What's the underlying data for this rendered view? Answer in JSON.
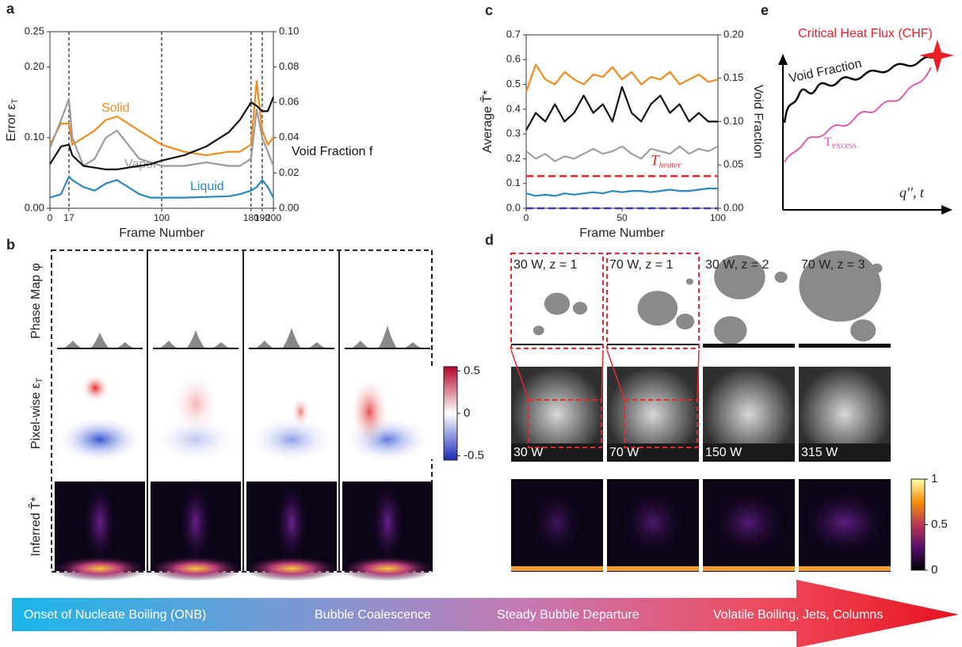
{
  "figure": {
    "panel_letters": [
      "a",
      "b",
      "c",
      "d",
      "e"
    ]
  },
  "chart_data": [
    {
      "type": "line",
      "xlabel": "Frame Number",
      "ylabel": "Error ε",
      "ylabel_sub": "T",
      "x": [
        0,
        10,
        17,
        20,
        30,
        40,
        50,
        60,
        70,
        80,
        90,
        100,
        120,
        140,
        160,
        170,
        180,
        185,
        190,
        195,
        200
      ],
      "xlim": [
        0,
        200
      ],
      "xticks": [
        0,
        17,
        100,
        180,
        190,
        200
      ],
      "ylim": [
        0,
        0.25
      ],
      "yticks": [
        {
          "value": 0,
          "label": "0.00"
        },
        {
          "value": 0.1,
          "label": "0.10"
        },
        {
          "value": 0.2,
          "label": "0.20"
        },
        0.25
      ],
      "y2lim": [
        0,
        0.1
      ],
      "y2ticks": [
        {
          "value": 0,
          "label": "0.00"
        },
        0.02,
        0.04,
        0.06,
        0.08,
        {
          "value": 0.1,
          "label": "0.10"
        }
      ],
      "vlines": [
        17,
        100,
        180,
        190
      ],
      "series": [
        {
          "name": "Solid",
          "color": "#f28a1c",
          "values": [
            0.09,
            0.12,
            0.12,
            0.09,
            0.1,
            0.11,
            0.125,
            0.13,
            0.12,
            0.11,
            0.1,
            0.09,
            0.08,
            0.075,
            0.08,
            0.08,
            0.09,
            0.18,
            0.11,
            0.09,
            0.1
          ]
        },
        {
          "name": "Vapor",
          "color": "#9a9a9a",
          "values": [
            0.085,
            0.125,
            0.155,
            0.1,
            0.06,
            0.07,
            0.1,
            0.11,
            0.09,
            0.07,
            0.065,
            0.06,
            0.06,
            0.065,
            0.06,
            0.06,
            0.07,
            0.14,
            0.1,
            0.08,
            0.06
          ]
        },
        {
          "name": "Liquid",
          "color": "#2a88c0",
          "values": [
            0.015,
            0.02,
            0.045,
            0.04,
            0.03,
            0.025,
            0.035,
            0.04,
            0.03,
            0.02,
            0.015,
            0.015,
            0.015,
            0.016,
            0.017,
            0.02,
            0.025,
            0.03,
            0.04,
            0.03,
            0.015
          ]
        },
        {
          "name": "Void Fraction f",
          "color": "#111111",
          "axis": "y2",
          "values": [
            0.025,
            0.035,
            0.036,
            0.03,
            0.024,
            0.023,
            0.022,
            0.022,
            0.023,
            0.024,
            0.025,
            0.027,
            0.03,
            0.035,
            0.043,
            0.05,
            0.06,
            0.058,
            0.055,
            0.055,
            0.063
          ]
        }
      ]
    },
    {
      "type": "line",
      "xlabel": "Frame Number",
      "ylabel": "Average T̂*",
      "y2label": "Void Fraction",
      "x": [
        0,
        5,
        10,
        15,
        20,
        25,
        30,
        35,
        40,
        45,
        50,
        55,
        60,
        65,
        70,
        75,
        80,
        85,
        90,
        95,
        100
      ],
      "xlim": [
        0,
        100
      ],
      "xticks": [
        0,
        50,
        100
      ],
      "ylim": [
        0,
        0.7
      ],
      "yticks": [
        {
          "value": 0,
          "label": "0.0"
        },
        0.1,
        0.2,
        0.3,
        0.4,
        0.5,
        0.6,
        0.7
      ],
      "y2lim": [
        0,
        0.2
      ],
      "y2ticks": [
        {
          "value": 0,
          "label": "0.00"
        },
        0.05,
        {
          "value": 0.1,
          "label": "0.10"
        },
        0.15,
        {
          "value": 0.2,
          "label": "0.20"
        }
      ],
      "reference_lines": [
        {
          "value": 0.13,
          "color": "#e8262c",
          "label": "T",
          "label_sub": "heater"
        },
        {
          "value": 0,
          "color": "#3c3ca8"
        }
      ],
      "series": [
        {
          "color": "#f28a1c",
          "values": [
            0.47,
            0.58,
            0.52,
            0.5,
            0.55,
            0.52,
            0.5,
            0.54,
            0.53,
            0.57,
            0.52,
            0.55,
            0.5,
            0.53,
            0.52,
            0.55,
            0.5,
            0.52,
            0.54,
            0.51,
            0.52
          ]
        },
        {
          "color": "#111111",
          "axis": "y2",
          "values": [
            0.09,
            0.11,
            0.1,
            0.12,
            0.1,
            0.11,
            0.13,
            0.11,
            0.12,
            0.1,
            0.14,
            0.11,
            0.1,
            0.12,
            0.13,
            0.11,
            0.12,
            0.1,
            0.11,
            0.1,
            0.1
          ]
        },
        {
          "color": "#a0a0a0",
          "values": [
            0.23,
            0.2,
            0.22,
            0.19,
            0.21,
            0.2,
            0.22,
            0.24,
            0.22,
            0.23,
            0.25,
            0.22,
            0.2,
            0.24,
            0.23,
            0.22,
            0.25,
            0.22,
            0.24,
            0.23,
            0.25
          ]
        },
        {
          "color": "#2a88c0",
          "values": [
            0.06,
            0.05,
            0.055,
            0.05,
            0.06,
            0.055,
            0.06,
            0.065,
            0.06,
            0.07,
            0.065,
            0.07,
            0.07,
            0.065,
            0.07,
            0.075,
            0.07,
            0.07,
            0.075,
            0.08,
            0.08
          ]
        }
      ]
    }
  ],
  "schematic": {
    "title": "Critical Heat Flux (CHF)",
    "curve_label": "Void Fraction",
    "excess_label": "T",
    "excess_sub": "excess",
    "x_label": "q′′, t"
  },
  "panel_b": {
    "row_labels": [
      {
        "text": "Phase Map φ"
      },
      {
        "text": "Pixel-wise ε",
        "sub": "T"
      },
      {
        "text": "Inferred T̂*"
      }
    ],
    "colorbar_lim": [
      -0.55,
      0.55
    ],
    "colorbar_ticks": [
      0.5,
      0,
      -0.5
    ]
  },
  "panel_d": {
    "phase_labels": [
      "30 W, z = 1",
      "70 W, z = 1",
      "30 W, z = 2",
      "70 W, z = 3"
    ],
    "power_labels": [
      "30 W",
      "70 W",
      "150 W",
      "315 W"
    ],
    "colorbar_lim": [
      0,
      1
    ],
    "colorbar_ticks": [
      1,
      0.5,
      0
    ]
  },
  "stages": [
    "Onset of Nucleate Boiling (ONB)",
    "Bubble Coalescence",
    "Steady Bubble Departure",
    "Volatile Boiling, Jets, Columns"
  ]
}
